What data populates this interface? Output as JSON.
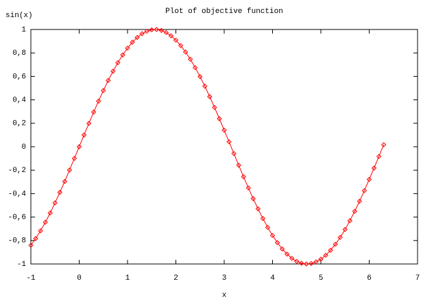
{
  "chart_data": {
    "type": "line",
    "title": "Plot of objective function",
    "xlabel": "x",
    "ylabel": "sin(x)",
    "color": "#ff0000",
    "marker": "diamond",
    "x": [
      -1.0,
      -0.9,
      -0.8,
      -0.7,
      -0.6,
      -0.5,
      -0.4,
      -0.3,
      -0.2,
      -0.1,
      0,
      0.1,
      0.2,
      0.3,
      0.4,
      0.5,
      0.6,
      0.7,
      0.8,
      0.9,
      1.0,
      1.1,
      1.2,
      1.3,
      1.4,
      1.5,
      1.6,
      1.7,
      1.8,
      1.9,
      2.0,
      2.1,
      2.2,
      2.3,
      2.4,
      2.5,
      2.6,
      2.7,
      2.8,
      2.9,
      3.0,
      3.1,
      3.2,
      3.3,
      3.4,
      3.5,
      3.6,
      3.7,
      3.8,
      3.9,
      4.0,
      4.1,
      4.2,
      4.3,
      4.4,
      4.5,
      4.6,
      4.7,
      4.8,
      4.9,
      5.0,
      5.1,
      5.2,
      5.3,
      5.4,
      5.5,
      5.6,
      5.7,
      5.8,
      5.9,
      6.0,
      6.1,
      6.2,
      6.3
    ],
    "values": [
      -0.841,
      -0.783,
      -0.717,
      -0.644,
      -0.565,
      -0.479,
      -0.389,
      -0.296,
      -0.199,
      -0.1,
      0,
      0.1,
      0.199,
      0.296,
      0.389,
      0.479,
      0.565,
      0.644,
      0.717,
      0.783,
      0.841,
      0.891,
      0.932,
      0.964,
      0.985,
      0.997,
      1.0,
      0.992,
      0.974,
      0.946,
      0.909,
      0.863,
      0.808,
      0.746,
      0.675,
      0.598,
      0.516,
      0.427,
      0.335,
      0.239,
      0.141,
      0.042,
      -0.058,
      -0.158,
      -0.256,
      -0.351,
      -0.443,
      -0.53,
      -0.612,
      -0.688,
      -0.757,
      -0.818,
      -0.872,
      -0.916,
      -0.952,
      -0.978,
      -0.994,
      -1.0,
      -0.996,
      -0.982,
      -0.959,
      -0.926,
      -0.883,
      -0.832,
      -0.773,
      -0.706,
      -0.631,
      -0.551,
      -0.465,
      -0.374,
      -0.279,
      -0.182,
      -0.083,
      0.017
    ],
    "xlim": [
      -1,
      7
    ],
    "xticks": [
      -1,
      0,
      1,
      2,
      3,
      4,
      5,
      6,
      7
    ],
    "ylim": [
      -1,
      1
    ],
    "yticks": [
      -1,
      {
        "value": -0.8,
        "label": "-0,8"
      },
      {
        "value": -0.6,
        "label": "-0,6"
      },
      {
        "value": -0.4,
        "label": "-0,4"
      },
      {
        "value": -0.2,
        "label": "-0,2"
      },
      0,
      {
        "value": 0.2,
        "label": "0,2"
      },
      {
        "value": 0.4,
        "label": "0,4"
      },
      {
        "value": 0.6,
        "label": "0,6"
      },
      {
        "value": 0.8,
        "label": "0,8"
      },
      1
    ],
    "grid": false
  }
}
